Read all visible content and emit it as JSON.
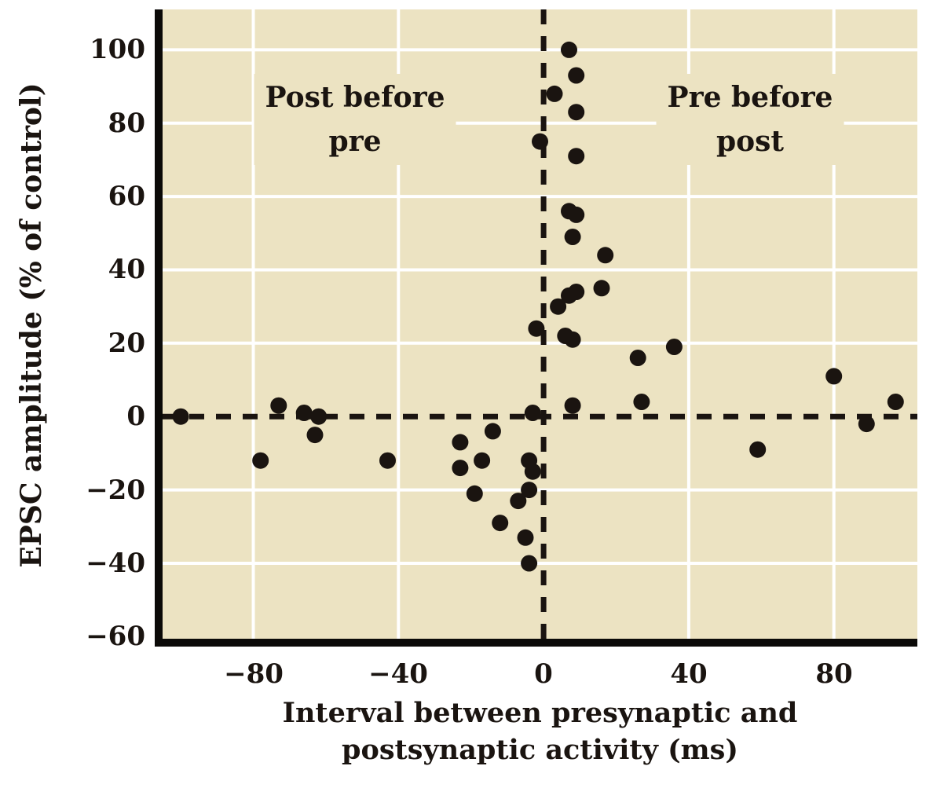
{
  "figure": {
    "background_color": "#ffffff",
    "plot_background_color": "#ece3c2",
    "grid_color": "#ffffff",
    "point_color": "#1a1410",
    "axis_color": "#0b0a08",
    "text_color": "#1a1410"
  },
  "chart_data": {
    "type": "scatter",
    "title": "",
    "xlabel": "Interval between presynaptic and postsynaptic activity (ms)",
    "xlabel_lines": [
      "Interval between presynaptic and",
      "postsynaptic activity (ms)"
    ],
    "ylabel": "EPSC amplitude (% of control)",
    "xlim": [
      -105,
      103
    ],
    "ylim": [
      -61,
      111
    ],
    "grid": true,
    "legend": "none",
    "reference_lines": [
      {
        "axis": "x",
        "value": 0,
        "style": "dashed"
      },
      {
        "axis": "y",
        "value": 0,
        "style": "dashed"
      }
    ],
    "xticks": {
      "values": [
        -80,
        -40,
        0,
        40,
        80
      ],
      "labels": [
        "−80",
        "−40",
        "0",
        "40",
        "80"
      ]
    },
    "yticks": {
      "values": [
        100,
        80,
        60,
        40,
        20,
        0,
        -20,
        -40,
        -60
      ],
      "labels": [
        "100",
        "80",
        "60",
        "40",
        "20",
        "0",
        "−20",
        "−40",
        "−60"
      ]
    },
    "annotations": [
      {
        "lines": [
          "Post before",
          "pre"
        ],
        "x": -52,
        "y": 81
      },
      {
        "lines": [
          "Pre before",
          "post"
        ],
        "x": 57,
        "y": 81
      }
    ],
    "points": [
      [
        -100,
        0
      ],
      [
        -78,
        -12
      ],
      [
        -73,
        3
      ],
      [
        -66,
        1
      ],
      [
        -63,
        -5
      ],
      [
        -62,
        0
      ],
      [
        -43,
        -12
      ],
      [
        -23,
        -7
      ],
      [
        -23,
        -14
      ],
      [
        -19,
        -21
      ],
      [
        -17,
        -12
      ],
      [
        -14,
        -4
      ],
      [
        -12,
        -29
      ],
      [
        -7,
        -23
      ],
      [
        -5,
        -33
      ],
      [
        -4,
        -40
      ],
      [
        -4,
        -20
      ],
      [
        -4,
        -12
      ],
      [
        -3,
        -15
      ],
      [
        -3,
        1
      ],
      [
        -2,
        24
      ],
      [
        -1,
        75
      ],
      [
        3,
        88
      ],
      [
        4,
        30
      ],
      [
        6,
        22
      ],
      [
        7,
        100
      ],
      [
        7,
        56
      ],
      [
        7,
        33
      ],
      [
        8,
        21
      ],
      [
        8,
        3
      ],
      [
        8,
        49
      ],
      [
        9,
        93
      ],
      [
        9,
        83
      ],
      [
        9,
        71
      ],
      [
        9,
        55
      ],
      [
        9,
        34
      ],
      [
        16,
        35
      ],
      [
        17,
        44
      ],
      [
        26,
        16
      ],
      [
        27,
        4
      ],
      [
        36,
        19
      ],
      [
        59,
        -9
      ],
      [
        80,
        11
      ],
      [
        89,
        -2
      ],
      [
        97,
        4
      ]
    ]
  }
}
